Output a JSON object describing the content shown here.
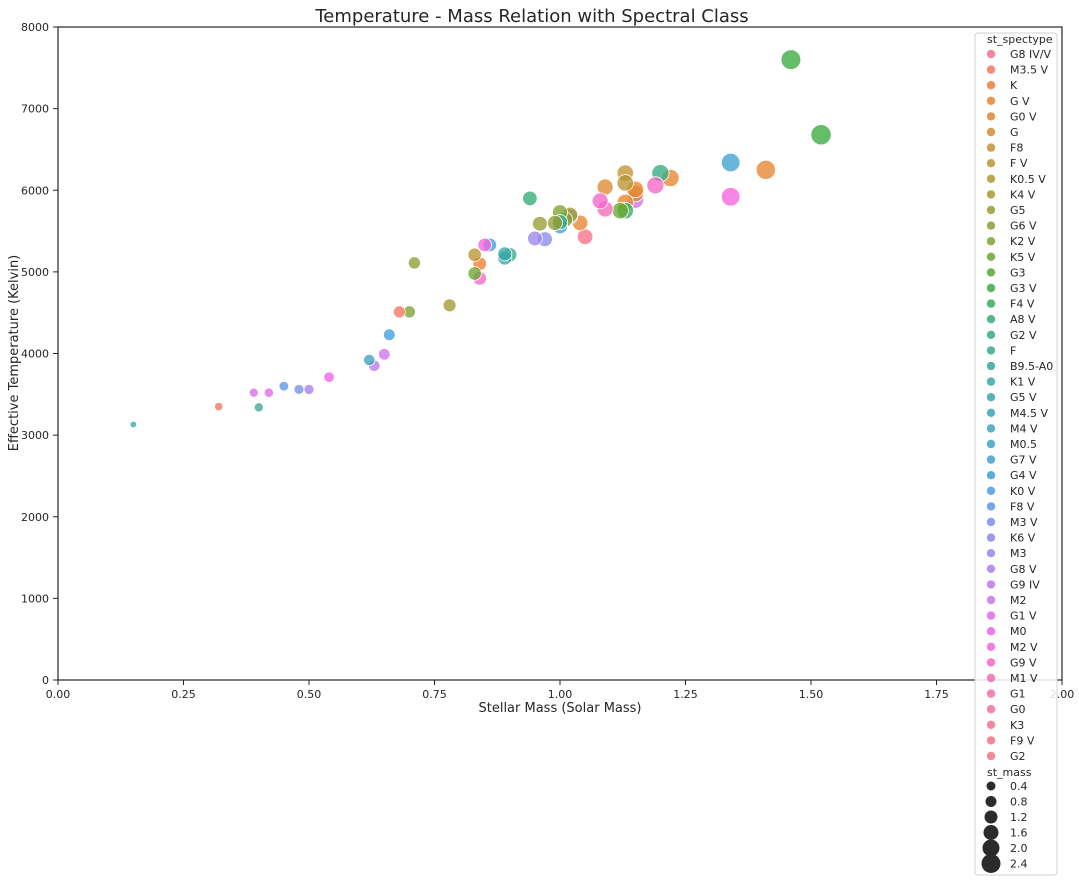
{
  "chart_data": {
    "type": "scatter",
    "title": "Temperature - Mass Relation with Spectral Class",
    "xlabel": "Stellar Mass (Solar Mass)",
    "ylabel": "Effective Temperature (Kelvin)",
    "xlim": [
      0,
      2.0
    ],
    "ylim": [
      0,
      8000
    ],
    "xticks": [
      "0.00",
      "0.25",
      "0.50",
      "0.75",
      "1.00",
      "1.25",
      "1.50",
      "1.75",
      "2.00"
    ],
    "yticks": [
      "0",
      "1000",
      "2000",
      "3000",
      "4000",
      "5000",
      "6000",
      "7000",
      "8000"
    ],
    "grid": false,
    "legend_placement": "right",
    "hue_legend": {
      "title": "st_spectype",
      "entries": [
        {
          "label": "G8 IV/V",
          "color": "#f77189"
        },
        {
          "label": "M3.5 V",
          "color": "#f7745e"
        },
        {
          "label": "K",
          "color": "#f27d30"
        },
        {
          "label": "G V",
          "color": "#e88531"
        },
        {
          "label": "G0 V",
          "color": "#dc8932"
        },
        {
          "label": "G",
          "color": "#d08e32"
        },
        {
          "label": "F8",
          "color": "#c49132"
        },
        {
          "label": "F V",
          "color": "#b99532"
        },
        {
          "label": "K0.5 V",
          "color": "#ae9832"
        },
        {
          "label": "K4 V",
          "color": "#a39b32"
        },
        {
          "label": "G5",
          "color": "#979d32"
        },
        {
          "label": "G6 V",
          "color": "#8aa032"
        },
        {
          "label": "K2 V",
          "color": "#7ca332"
        },
        {
          "label": "K5 V",
          "color": "#6ba631"
        },
        {
          "label": "G3",
          "color": "#55a932"
        },
        {
          "label": "G3 V",
          "color": "#3aab40"
        },
        {
          "label": "F4 V",
          "color": "#34ad5f"
        },
        {
          "label": "A8 V",
          "color": "#35ab74"
        },
        {
          "label": "G2 V",
          "color": "#36aa84"
        },
        {
          "label": "F",
          "color": "#37a990"
        },
        {
          "label": "B9.5-A0",
          "color": "#38a89b"
        },
        {
          "label": "K1 V",
          "color": "#39a7a4"
        },
        {
          "label": "G5 V",
          "color": "#3aa6ad"
        },
        {
          "label": "M4.5 V",
          "color": "#3ba5b5"
        },
        {
          "label": "M4 V",
          "color": "#3ca4bd"
        },
        {
          "label": "M0.5",
          "color": "#3da3c6"
        },
        {
          "label": "G7 V",
          "color": "#3ea1cf"
        },
        {
          "label": "G4 V",
          "color": "#409fd9"
        },
        {
          "label": "K0 V",
          "color": "#4a9be5"
        },
        {
          "label": "F8 V",
          "color": "#5f96ea"
        },
        {
          "label": "M3 V",
          "color": "#7590eb"
        },
        {
          "label": "K6 V",
          "color": "#8a8aec"
        },
        {
          "label": "M3",
          "color": "#9b85ec"
        },
        {
          "label": "G8 V",
          "color": "#ab7fec"
        },
        {
          "label": "G9 IV",
          "color": "#bc79ec"
        },
        {
          "label": "M2",
          "color": "#cd72ec"
        },
        {
          "label": "G1 V",
          "color": "#de6aec"
        },
        {
          "label": "M0",
          "color": "#ee61eb"
        },
        {
          "label": "M2 V",
          "color": "#f564dc"
        },
        {
          "label": "G9 V",
          "color": "#f567ca"
        },
        {
          "label": "M1 V",
          "color": "#f56aba"
        },
        {
          "label": "G1",
          "color": "#f66daa"
        },
        {
          "label": "G0",
          "color": "#f66f9b"
        },
        {
          "label": "K3",
          "color": "#f7708f"
        },
        {
          "label": "F9 V",
          "color": "#f77189"
        },
        {
          "label": "G2",
          "color": "#f77189"
        }
      ]
    },
    "size_legend": {
      "title": "st_mass",
      "entries": [
        {
          "label": "0.4",
          "mass": 0.4
        },
        {
          "label": "0.8",
          "mass": 0.8
        },
        {
          "label": "1.2",
          "mass": 1.2
        },
        {
          "label": "1.6",
          "mass": 1.6
        },
        {
          "label": "2.0",
          "mass": 2.0
        },
        {
          "label": "2.4",
          "mass": 2.4
        }
      ]
    },
    "points": [
      {
        "x": 0.15,
        "y": 3130,
        "c": "#3aa6ad"
      },
      {
        "x": 0.32,
        "y": 3350,
        "c": "#f7745e"
      },
      {
        "x": 0.39,
        "y": 3520,
        "c": "#de6aec"
      },
      {
        "x": 0.4,
        "y": 3340,
        "c": "#38a89b"
      },
      {
        "x": 0.42,
        "y": 3520,
        "c": "#de6aec"
      },
      {
        "x": 0.45,
        "y": 3600,
        "c": "#5f96ea"
      },
      {
        "x": 0.48,
        "y": 3560,
        "c": "#7590eb"
      },
      {
        "x": 0.5,
        "y": 3560,
        "c": "#ab7fec"
      },
      {
        "x": 0.54,
        "y": 3710,
        "c": "#ee61eb"
      },
      {
        "x": 0.62,
        "y": 3920,
        "c": "#3ca4bd"
      },
      {
        "x": 0.63,
        "y": 3850,
        "c": "#bc79ec"
      },
      {
        "x": 0.65,
        "y": 3990,
        "c": "#cd72ec"
      },
      {
        "x": 0.66,
        "y": 4230,
        "c": "#409fd9"
      },
      {
        "x": 0.68,
        "y": 4510,
        "c": "#f7745e"
      },
      {
        "x": 0.7,
        "y": 4510,
        "c": "#7ca332"
      },
      {
        "x": 0.71,
        "y": 5110,
        "c": "#8aa032"
      },
      {
        "x": 0.78,
        "y": 4590,
        "c": "#a39b32"
      },
      {
        "x": 0.83,
        "y": 5210,
        "c": "#b99532"
      },
      {
        "x": 0.83,
        "y": 4980,
        "c": "#6ba631"
      },
      {
        "x": 0.84,
        "y": 5100,
        "c": "#f27d30"
      },
      {
        "x": 0.84,
        "y": 4920,
        "c": "#f567ca"
      },
      {
        "x": 0.85,
        "y": 5330,
        "c": "#f564dc"
      },
      {
        "x": 0.86,
        "y": 5330,
        "c": "#409fd9"
      },
      {
        "x": 0.89,
        "y": 5170,
        "c": "#3aa6ad"
      },
      {
        "x": 0.89,
        "y": 5220,
        "c": "#39a7a4"
      },
      {
        "x": 0.9,
        "y": 5210,
        "c": "#37a990"
      },
      {
        "x": 0.94,
        "y": 5900,
        "c": "#35ab74"
      },
      {
        "x": 0.95,
        "y": 5410,
        "c": "#9b85ec"
      },
      {
        "x": 0.96,
        "y": 5590,
        "c": "#979d32"
      },
      {
        "x": 0.97,
        "y": 5400,
        "c": "#8a8aec"
      },
      {
        "x": 0.99,
        "y": 5600,
        "c": "#979d32"
      },
      {
        "x": 1.0,
        "y": 5730,
        "c": "#7ca332"
      },
      {
        "x": 1.0,
        "y": 5600,
        "c": "#55a932"
      },
      {
        "x": 1.0,
        "y": 5560,
        "c": "#3ea1cf"
      },
      {
        "x": 1.0,
        "y": 5610,
        "c": "#36aa84"
      },
      {
        "x": 1.01,
        "y": 5640,
        "c": "#8aa032"
      },
      {
        "x": 1.02,
        "y": 5680,
        "c": "#3da3c6"
      },
      {
        "x": 1.02,
        "y": 5700,
        "c": "#ae9832"
      },
      {
        "x": 1.04,
        "y": 5600,
        "c": "#e88531"
      },
      {
        "x": 1.05,
        "y": 5430,
        "c": "#f77189"
      },
      {
        "x": 1.08,
        "y": 5870,
        "c": "#f567ca"
      },
      {
        "x": 1.09,
        "y": 5770,
        "c": "#f56aba"
      },
      {
        "x": 1.09,
        "y": 6040,
        "c": "#dc8932"
      },
      {
        "x": 1.12,
        "y": 5750,
        "c": "#6ba631"
      },
      {
        "x": 1.13,
        "y": 5850,
        "c": "#e88531"
      },
      {
        "x": 1.13,
        "y": 6210,
        "c": "#c49132"
      },
      {
        "x": 1.13,
        "y": 6090,
        "c": "#b99532"
      },
      {
        "x": 1.13,
        "y": 5750,
        "c": "#34ad5f"
      },
      {
        "x": 1.15,
        "y": 5880,
        "c": "#cd72ec"
      },
      {
        "x": 1.15,
        "y": 5960,
        "c": "#d08e32"
      },
      {
        "x": 1.15,
        "y": 6010,
        "c": "#e88531"
      },
      {
        "x": 1.19,
        "y": 6060,
        "c": "#f567ca"
      },
      {
        "x": 1.2,
        "y": 6210,
        "c": "#36aa84"
      },
      {
        "x": 1.22,
        "y": 6150,
        "c": "#e88531"
      },
      {
        "x": 1.34,
        "y": 6340,
        "c": "#3ea1cf"
      },
      {
        "x": 1.34,
        "y": 5920,
        "c": "#f564dc"
      },
      {
        "x": 1.41,
        "y": 6250,
        "c": "#e88531"
      },
      {
        "x": 1.46,
        "y": 7600,
        "c": "#3aab40"
      },
      {
        "x": 1.52,
        "y": 6680,
        "c": "#3aab40"
      }
    ]
  }
}
